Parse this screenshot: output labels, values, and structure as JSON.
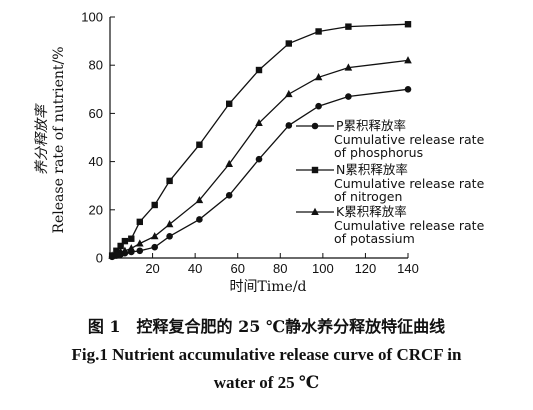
{
  "chart_data": {
    "type": "line",
    "xlabel": "时间Time/d",
    "ylabel_cn": "养分释放率",
    "ylabel_en": "Release rate of nutrient/%",
    "xlim": [
      0,
      140
    ],
    "ylim": [
      0,
      100
    ],
    "xticks": [
      20,
      40,
      60,
      80,
      100,
      120,
      140
    ],
    "yticks": [
      0,
      20,
      40,
      60,
      80,
      100
    ],
    "grid": false,
    "legend_position": "right",
    "series": [
      {
        "marker": "circle",
        "legend_cn": "P累积释放率",
        "legend_en_1": "Cumulative release rate",
        "legend_en_2": "of phosphorus",
        "x": [
          1,
          3,
          5,
          7,
          10,
          14,
          21,
          28,
          42,
          56,
          70,
          84,
          98,
          112,
          140
        ],
        "y": [
          0.5,
          1,
          1.5,
          2,
          2.5,
          3,
          4.5,
          9,
          16,
          26,
          41,
          55,
          63,
          67,
          70
        ]
      },
      {
        "marker": "square",
        "legend_cn": "N累积释放率",
        "legend_en_1": "Cumulative release rate",
        "legend_en_2": "of nitrogen",
        "x": [
          1,
          3,
          5,
          7,
          10,
          14,
          21,
          28,
          42,
          56,
          70,
          84,
          98,
          112,
          140
        ],
        "y": [
          1,
          3,
          5,
          7,
          8,
          15,
          22,
          32,
          47,
          64,
          78,
          89,
          94,
          96,
          97
        ]
      },
      {
        "marker": "triangle",
        "legend_cn": "K累积释放率",
        "legend_en_1": "Cumulative release rate",
        "legend_en_2": "of potassium",
        "x": [
          1,
          3,
          5,
          7,
          10,
          14,
          21,
          28,
          42,
          56,
          70,
          84,
          98,
          112,
          140
        ],
        "y": [
          1,
          2,
          2.5,
          3,
          4,
          6,
          9,
          14,
          24,
          39,
          56,
          68,
          75,
          79,
          82
        ]
      }
    ]
  },
  "caption": {
    "cn": "图 1　控释复合肥的 25 ℃静水养分释放特征曲线",
    "en_line1": "Fig.1    Nutrient accumulative release curve of CRCF in",
    "en_line2": "water of 25 ℃"
  }
}
